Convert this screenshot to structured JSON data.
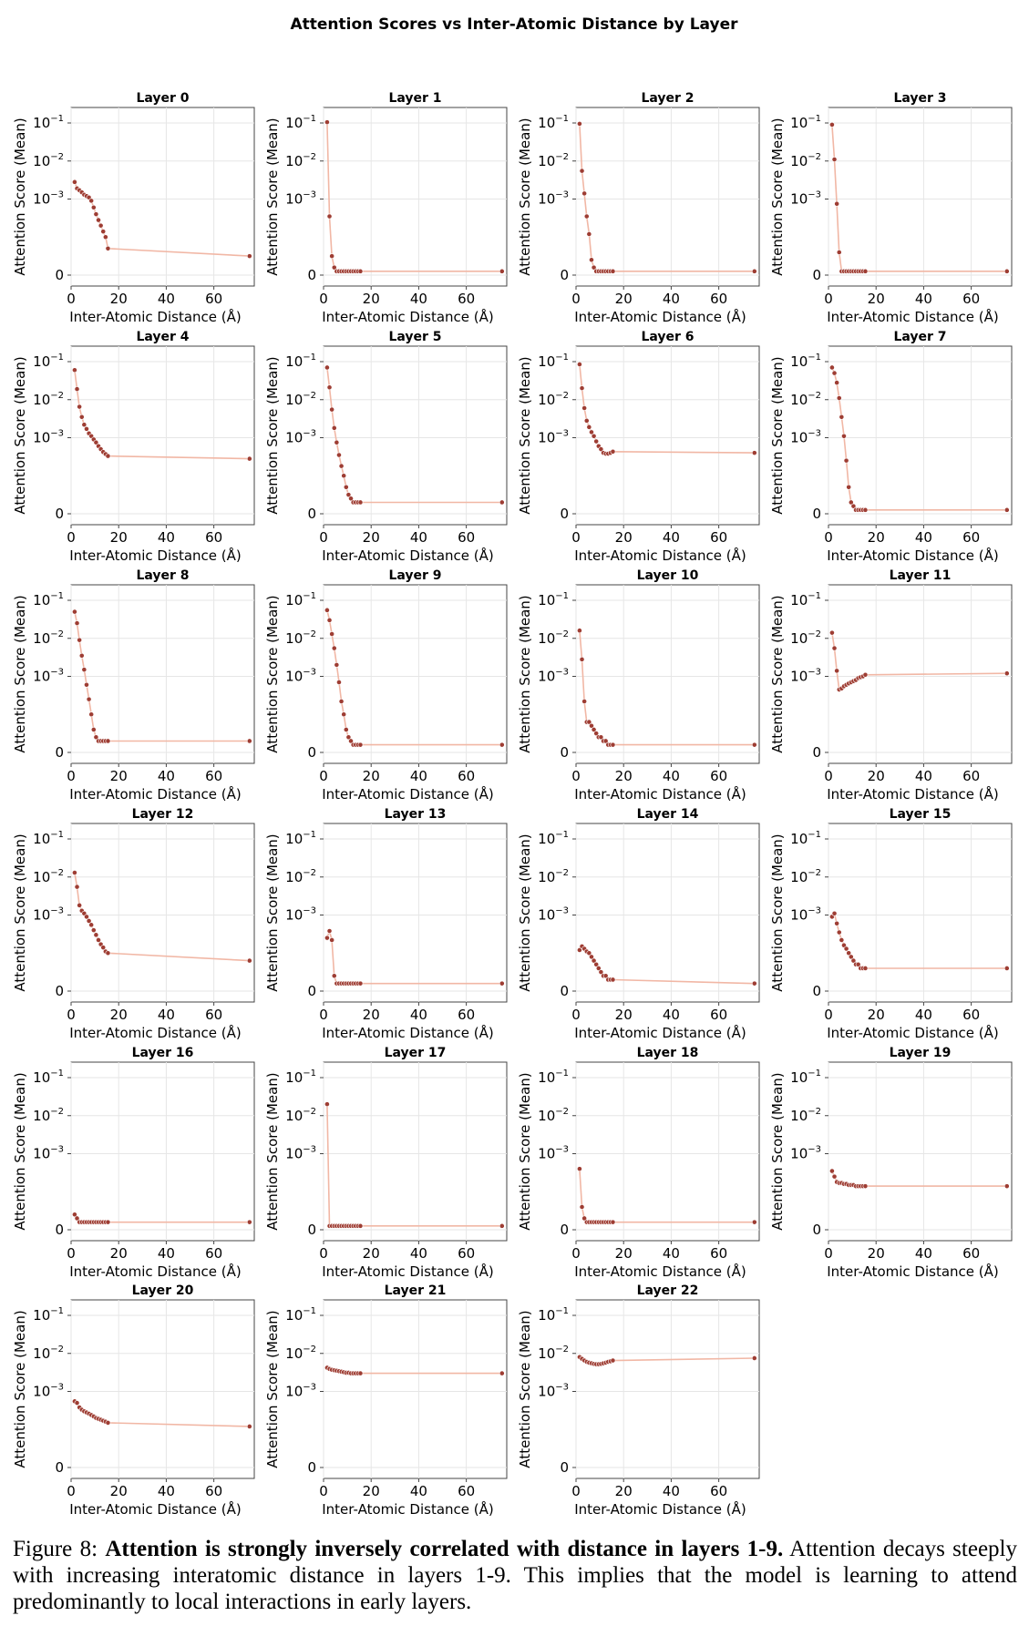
{
  "figure": {
    "suptitle": "Attention Scores vs Inter-Atomic Distance by Layer",
    "caption": {
      "prefix": "Figure 8: ",
      "bold": "Attention is strongly inversely correlated with distance in layers 1-9.",
      "rest": " Attention decays steeply with increasing interatomic distance in layers 1-9. This implies that the model is learning to attend predominantly to local interactions in early layers."
    }
  },
  "chart_data": {
    "type": "line",
    "layout_grid": "6x4",
    "xlabel": "Inter-Atomic Distance (Å)",
    "ylabel": "Attention Score (Mean)",
    "xticks": [
      0,
      20,
      40,
      60
    ],
    "xlim": [
      0,
      77
    ],
    "yscale": "symlog",
    "ytick_labels": [
      {
        "value": 0,
        "base": "0",
        "exp": ""
      },
      {
        "value": 0.001,
        "base": "10",
        "exp": "−3"
      },
      {
        "value": 0.01,
        "base": "10",
        "exp": "−2"
      },
      {
        "value": 0.1,
        "base": "10",
        "exp": "−1"
      }
    ],
    "grid": true,
    "line_color": "#f1b7a5",
    "marker_color": "#9e3d33",
    "x": [
      1.5,
      2.5,
      3.5,
      4.5,
      5.5,
      6.5,
      7.5,
      8.5,
      9.5,
      10.5,
      11.5,
      12.5,
      13.5,
      14.5,
      15.5,
      75
    ],
    "panels": [
      {
        "title": "Layer 0",
        "y": [
          0.0028,
          0.0019,
          0.0017,
          0.0015,
          0.0013,
          0.0012,
          0.0011,
          0.0009,
          0.0006,
          0.0004,
          0.00028,
          0.0002,
          0.00014,
          0.0001,
          7e-05,
          5e-05
        ]
      },
      {
        "title": "Layer 1",
        "y": [
          0.105,
          0.00035,
          5e-05,
          2e-05,
          1e-05,
          1e-05,
          1e-05,
          1e-05,
          1e-05,
          1e-05,
          1e-05,
          1e-05,
          1e-05,
          1e-05,
          1e-05,
          1e-05
        ]
      },
      {
        "title": "Layer 2",
        "y": [
          0.095,
          0.0055,
          0.0014,
          0.00035,
          0.00012,
          4e-05,
          2e-05,
          1e-05,
          1e-05,
          1e-05,
          1e-05,
          1e-05,
          1e-05,
          1e-05,
          1e-05,
          1e-05
        ]
      },
      {
        "title": "Layer 3",
        "y": [
          0.09,
          0.011,
          0.00075,
          6e-05,
          1e-05,
          1e-05,
          1e-05,
          1e-05,
          1e-05,
          1e-05,
          1e-05,
          1e-05,
          1e-05,
          1e-05,
          1e-05,
          1e-05
        ]
      },
      {
        "title": "Layer 4",
        "y": [
          0.06,
          0.019,
          0.0065,
          0.0035,
          0.0022,
          0.0017,
          0.0013,
          0.0011,
          0.0009,
          0.00075,
          0.0006,
          0.0005,
          0.00042,
          0.00037,
          0.00033,
          0.00028
        ]
      },
      {
        "title": "Layer 5",
        "y": [
          0.07,
          0.021,
          0.0055,
          0.0018,
          0.00075,
          0.00035,
          0.00018,
          0.0001,
          7e-05,
          5e-05,
          4e-05,
          3e-05,
          3e-05,
          3e-05,
          3e-05,
          3e-05
        ]
      },
      {
        "title": "Layer 6",
        "y": [
          0.085,
          0.02,
          0.006,
          0.0028,
          0.0019,
          0.0014,
          0.0011,
          0.0008,
          0.0006,
          0.0005,
          0.0004,
          0.00038,
          0.00038,
          0.0004,
          0.00043,
          0.0004
        ]
      },
      {
        "title": "Layer 7",
        "y": [
          0.07,
          0.05,
          0.028,
          0.011,
          0.0035,
          0.0011,
          0.00025,
          7e-05,
          3e-05,
          2e-05,
          1e-05,
          1e-05,
          1e-05,
          1e-05,
          1e-05,
          1e-05
        ]
      },
      {
        "title": "Layer 8",
        "y": [
          0.05,
          0.025,
          0.009,
          0.0035,
          0.0015,
          0.0006,
          0.00025,
          0.0001,
          6e-05,
          4e-05,
          3e-05,
          3e-05,
          3e-05,
          3e-05,
          3e-05,
          3e-05
        ]
      },
      {
        "title": "Layer 9",
        "y": [
          0.055,
          0.03,
          0.013,
          0.0055,
          0.002,
          0.0007,
          0.00022,
          0.0001,
          6e-05,
          4e-05,
          3e-05,
          2e-05,
          2e-05,
          2e-05,
          2e-05,
          2e-05
        ]
      },
      {
        "title": "Layer 10",
        "y": [
          0.016,
          0.0028,
          0.00022,
          8e-05,
          8e-05,
          7e-05,
          6e-05,
          5e-05,
          4e-05,
          4e-05,
          3e-05,
          3e-05,
          2e-05,
          2e-05,
          2e-05,
          2e-05
        ]
      },
      {
        "title": "Layer 11",
        "y": [
          0.014,
          0.0055,
          0.0014,
          0.00045,
          0.00048,
          0.00055,
          0.0006,
          0.00065,
          0.0007,
          0.00075,
          0.0008,
          0.0009,
          0.00095,
          0.001,
          0.0011,
          0.0012
        ]
      },
      {
        "title": "Layer 12",
        "y": [
          0.013,
          0.0055,
          0.0018,
          0.0013,
          0.0011,
          0.0009,
          0.0007,
          0.00055,
          0.0004,
          0.0003,
          0.00022,
          0.00017,
          0.00014,
          0.00011,
          0.0001,
          8e-05
        ]
      },
      {
        "title": "Layer 13",
        "y": [
          0.00025,
          0.00038,
          0.00022,
          4e-05,
          2e-05,
          2e-05,
          2e-05,
          2e-05,
          2e-05,
          2e-05,
          2e-05,
          2e-05,
          2e-05,
          2e-05,
          2e-05,
          2e-05
        ]
      },
      {
        "title": "Layer 14",
        "y": [
          0.00012,
          0.00015,
          0.00013,
          0.00011,
          0.0001,
          9e-05,
          8e-05,
          7e-05,
          6e-05,
          5e-05,
          4e-05,
          4e-05,
          3e-05,
          3e-05,
          3e-05,
          2e-05
        ]
      },
      {
        "title": "Layer 15",
        "y": [
          0.0009,
          0.0011,
          0.0006,
          0.00035,
          0.00022,
          0.00016,
          0.00013,
          0.0001,
          9e-05,
          8e-05,
          7e-05,
          7e-05,
          6e-05,
          6e-05,
          6e-05,
          6e-05
        ]
      },
      {
        "title": "Layer 16",
        "y": [
          4e-05,
          3e-05,
          2e-05,
          2e-05,
          2e-05,
          2e-05,
          2e-05,
          2e-05,
          2e-05,
          2e-05,
          2e-05,
          2e-05,
          2e-05,
          2e-05,
          2e-05,
          2e-05
        ]
      },
      {
        "title": "Layer 17",
        "y": [
          0.02,
          1e-05,
          1e-05,
          1e-05,
          1e-05,
          1e-05,
          1e-05,
          1e-05,
          1e-05,
          1e-05,
          1e-05,
          1e-05,
          1e-05,
          1e-05,
          1e-05,
          1e-05
        ]
      },
      {
        "title": "Layer 18",
        "y": [
          0.0004,
          6e-05,
          3e-05,
          2e-05,
          2e-05,
          2e-05,
          2e-05,
          2e-05,
          2e-05,
          2e-05,
          2e-05,
          2e-05,
          2e-05,
          2e-05,
          2e-05,
          2e-05
        ]
      },
      {
        "title": "Layer 19",
        "y": [
          0.00035,
          0.00025,
          0.00018,
          0.00017,
          0.00017,
          0.00016,
          0.00016,
          0.00015,
          0.00015,
          0.00015,
          0.00014,
          0.00014,
          0.00014,
          0.00014,
          0.00014,
          0.00014
        ]
      },
      {
        "title": "Layer 20",
        "y": [
          0.00055,
          0.0005,
          0.00038,
          0.00033,
          0.0003,
          0.00028,
          0.00026,
          0.00024,
          0.00022,
          0.0002,
          0.00019,
          0.00018,
          0.00017,
          0.00016,
          0.00015,
          0.00012
        ]
      },
      {
        "title": "Layer 21",
        "y": [
          0.0042,
          0.0039,
          0.0037,
          0.0036,
          0.0035,
          0.0034,
          0.0033,
          0.0032,
          0.0031,
          0.0031,
          0.003,
          0.003,
          0.003,
          0.003,
          0.003,
          0.003
        ]
      },
      {
        "title": "Layer 22",
        "y": [
          0.008,
          0.0072,
          0.0065,
          0.006,
          0.0057,
          0.0055,
          0.0053,
          0.0052,
          0.0052,
          0.0053,
          0.0055,
          0.0057,
          0.006,
          0.0062,
          0.0065,
          0.0075
        ]
      }
    ]
  }
}
